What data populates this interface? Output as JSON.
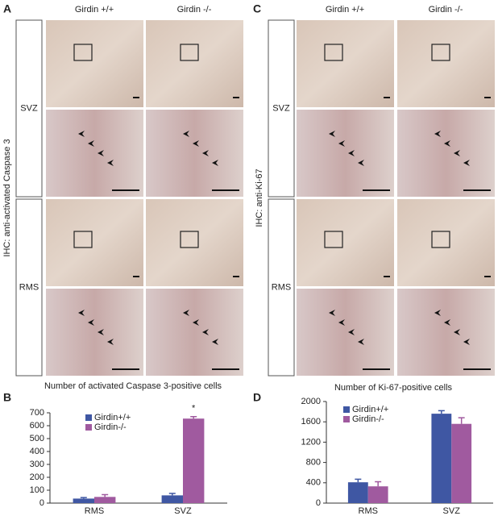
{
  "figure": {
    "panel_labels": [
      "A",
      "B",
      "C",
      "D"
    ],
    "image_panels": [
      {
        "ylabel": "IHC: anti-activated Caspase 3",
        "columns": [
          "Girdin +/+",
          "Girdin -/-"
        ],
        "rows": [
          "SVZ",
          "RMS"
        ]
      },
      {
        "ylabel": "IHC: anti-Ki-67",
        "columns": [
          "Girdin +/+",
          "Girdin -/-"
        ],
        "rows": [
          "SVZ",
          "RMS"
        ]
      }
    ]
  },
  "chart_data": [
    {
      "type": "bar",
      "title": "Number of activated Caspase 3-positive cells",
      "categories": [
        "RMS",
        "SVZ"
      ],
      "series": [
        {
          "name": "Girdin+/+",
          "color": "#3f57a3",
          "values": [
            35,
            60
          ],
          "errors": [
            8,
            15
          ]
        },
        {
          "name": "Girdin-/-",
          "color": "#a05a9f",
          "values": [
            48,
            655
          ],
          "errors": [
            18,
            15
          ]
        }
      ],
      "annotation": "*",
      "ylim": [
        0,
        700
      ],
      "yticks": [
        0,
        100,
        200,
        300,
        400,
        500,
        600,
        700
      ]
    },
    {
      "type": "bar",
      "title": "Number of Ki-67-positive cells",
      "categories": [
        "RMS",
        "SVZ"
      ],
      "series": [
        {
          "name": "Girdin+/+",
          "color": "#3f57a3",
          "values": [
            410,
            1760
          ],
          "errors": [
            60,
            60
          ]
        },
        {
          "name": "Girdin-/-",
          "color": "#a05a9f",
          "values": [
            330,
            1560
          ],
          "errors": [
            90,
            120
          ]
        }
      ],
      "ylim": [
        0,
        2000
      ],
      "yticks": [
        0,
        400,
        800,
        1200,
        1600,
        2000
      ]
    }
  ]
}
